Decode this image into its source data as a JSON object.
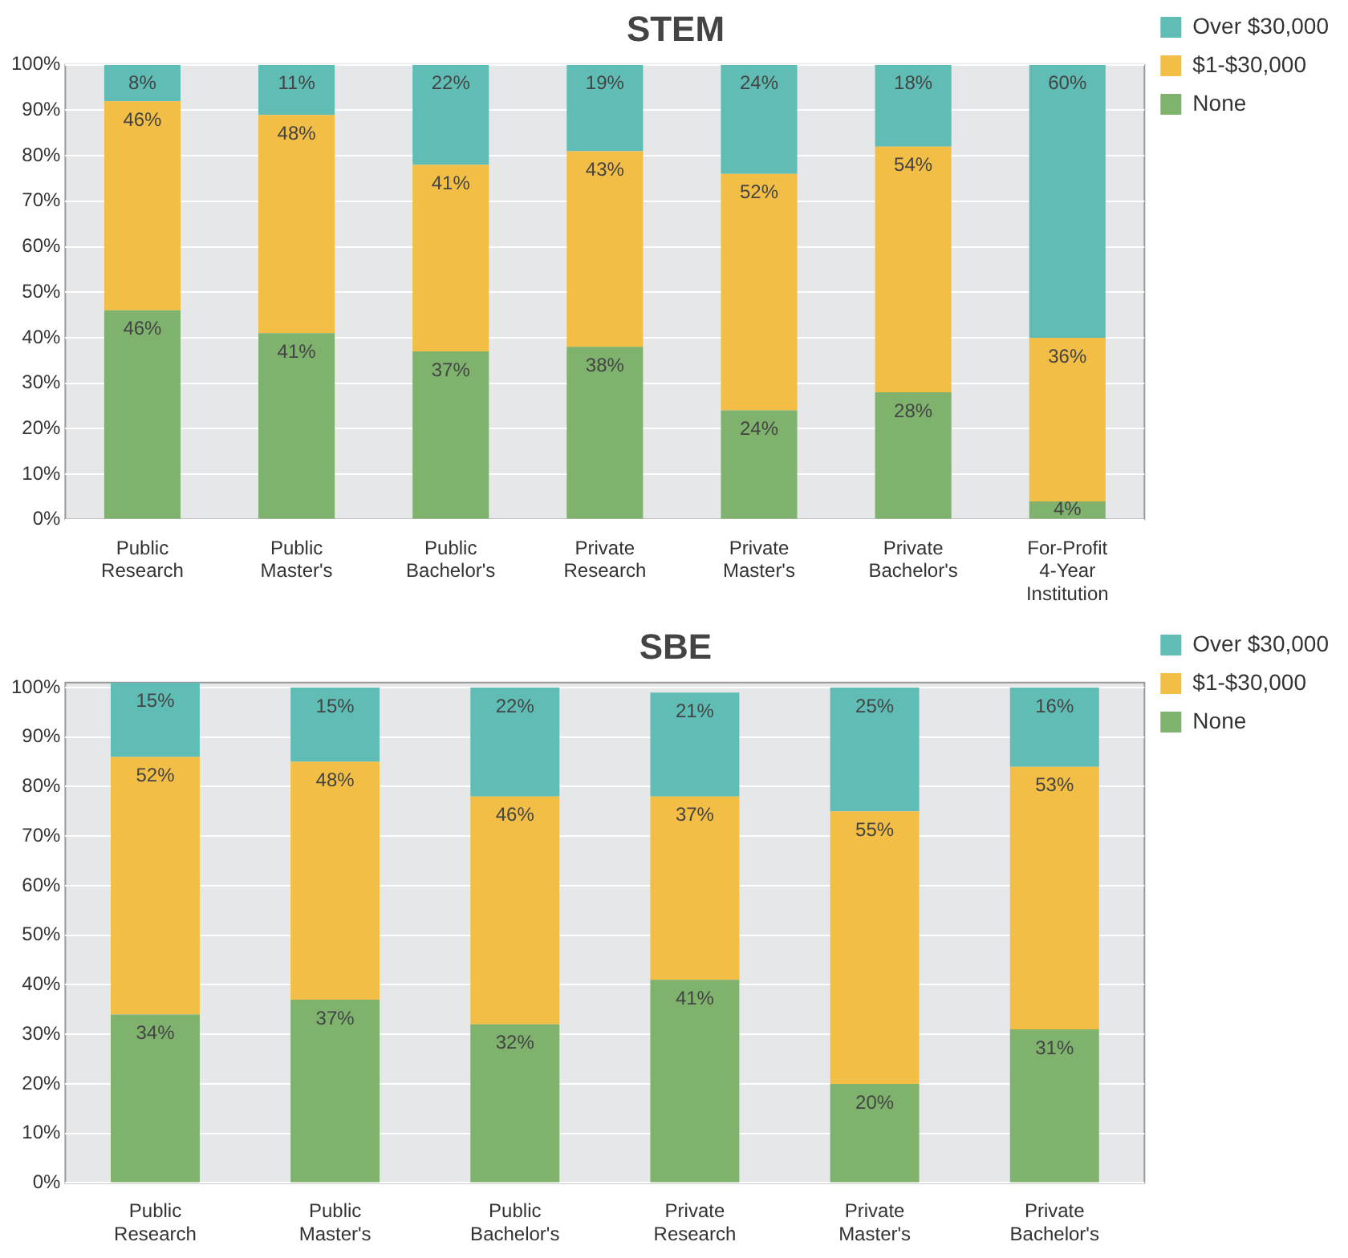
{
  "chart_data": [
    {
      "type": "bar",
      "title": "STEM",
      "stacked": true,
      "grid": "y",
      "legend": "top right",
      "categories": [
        "Public Research",
        "Public Master's",
        "Public Bachelor's",
        "Private Research",
        "Private Master's",
        "Private Bachelor's",
        "For-Profit 4-Year Institution"
      ],
      "ylim": [
        0,
        100
      ],
      "yticks": [
        {
          "value": 0,
          "label": "0%"
        },
        {
          "value": 10,
          "label": "10%"
        },
        {
          "value": 20,
          "label": "20%"
        },
        {
          "value": 30,
          "label": "30%"
        },
        {
          "value": 40,
          "label": "40%"
        },
        {
          "value": 50,
          "label": "50%"
        },
        {
          "value": 60,
          "label": "60%"
        },
        {
          "value": 70,
          "label": "70%"
        },
        {
          "value": 80,
          "label": "80%"
        },
        {
          "value": 90,
          "label": "90%"
        },
        {
          "value": 100,
          "label": "100%"
        }
      ],
      "series": [
        {
          "name": "None",
          "color": "#7eb26d",
          "values": [
            46,
            41,
            37,
            38,
            24,
            28,
            4
          ],
          "value_labels": [
            "46%",
            "41%",
            "37%",
            "38%",
            "24%",
            "28%",
            "4%"
          ]
        },
        {
          "name": "$1-$30,000",
          "color": "#f2be45",
          "values": [
            46,
            48,
            41,
            43,
            52,
            54,
            36
          ],
          "value_labels": [
            "46%",
            "48%",
            "41%",
            "43%",
            "52%",
            "54%",
            "36%"
          ]
        },
        {
          "name": "Over $30,000",
          "color": "#5fbdb5",
          "values": [
            8,
            11,
            22,
            19,
            24,
            18,
            60
          ],
          "value_labels": [
            "8%",
            "11%",
            "22%",
            "19%",
            "24%",
            "18%",
            "60%"
          ]
        }
      ]
    },
    {
      "type": "bar",
      "title": "SBE",
      "stacked": true,
      "grid": "y",
      "legend": "top right",
      "categories": [
        "Public Research",
        "Public Master's",
        "Public Bachelor's",
        "Private Research",
        "Private Master's",
        "Private Bachelor's"
      ],
      "ylim": [
        0,
        101
      ],
      "yticks": [
        {
          "value": 0,
          "label": "0%"
        },
        {
          "value": 10,
          "label": "10%"
        },
        {
          "value": 20,
          "label": "20%"
        },
        {
          "value": 30,
          "label": "30%"
        },
        {
          "value": 40,
          "label": "40%"
        },
        {
          "value": 50,
          "label": "50%"
        },
        {
          "value": 60,
          "label": "60%"
        },
        {
          "value": 70,
          "label": "70%"
        },
        {
          "value": 80,
          "label": "80%"
        },
        {
          "value": 90,
          "label": "90%"
        },
        {
          "value": 100,
          "label": "100%"
        }
      ],
      "series": [
        {
          "name": "None",
          "color": "#7eb26d",
          "values": [
            34,
            37,
            32,
            41,
            20,
            31
          ],
          "value_labels": [
            "34%",
            "37%",
            "32%",
            "41%",
            "20%",
            "31%"
          ]
        },
        {
          "name": "$1-$30,000",
          "color": "#f2be45",
          "values": [
            52,
            48,
            46,
            37,
            55,
            53
          ],
          "value_labels": [
            "52%",
            "48%",
            "46%",
            "37%",
            "55%",
            "53%"
          ]
        },
        {
          "name": "Over $30,000",
          "color": "#5fbdb5",
          "values": [
            15,
            15,
            22,
            21,
            25,
            16
          ],
          "value_labels": [
            "15%",
            "15%",
            "22%",
            "21%",
            "25%",
            "16%"
          ]
        }
      ]
    }
  ]
}
